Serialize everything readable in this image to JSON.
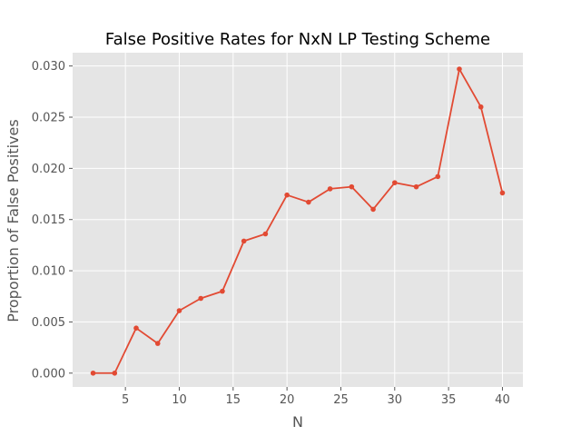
{
  "chart_data": {
    "type": "line",
    "title": "False Positive Rates for NxN LP Testing Scheme",
    "xlabel": "N",
    "ylabel": "Proportion of False Positives",
    "xlim": [
      0.1,
      41.9
    ],
    "ylim": [
      -0.00135,
      0.0313
    ],
    "x_ticks": [
      5,
      10,
      15,
      20,
      25,
      30,
      35,
      40
    ],
    "x_tick_labels": [
      "5",
      "10",
      "15",
      "20",
      "25",
      "30",
      "35",
      "40"
    ],
    "y_ticks": [
      0.0,
      0.005,
      0.01,
      0.015,
      0.02,
      0.025,
      0.03
    ],
    "y_tick_labels": [
      "0.000",
      "0.005",
      "0.010",
      "0.015",
      "0.020",
      "0.025",
      "0.030"
    ],
    "grid": true,
    "series": [
      {
        "color": "#e24a33",
        "x": [
          2,
          4,
          6,
          8,
          10,
          12,
          14,
          16,
          18,
          20,
          22,
          24,
          26,
          28,
          30,
          32,
          34,
          36,
          38,
          40
        ],
        "y": [
          0.0,
          0.0,
          0.0044,
          0.0029,
          0.0061,
          0.0073,
          0.008,
          0.0129,
          0.0136,
          0.0174,
          0.0167,
          0.018,
          0.0182,
          0.016,
          0.0186,
          0.0182,
          0.0192,
          0.0297,
          0.026,
          0.0176
        ]
      }
    ],
    "plot_background": "#e5e5e5",
    "grid_color": "#ffffff"
  }
}
